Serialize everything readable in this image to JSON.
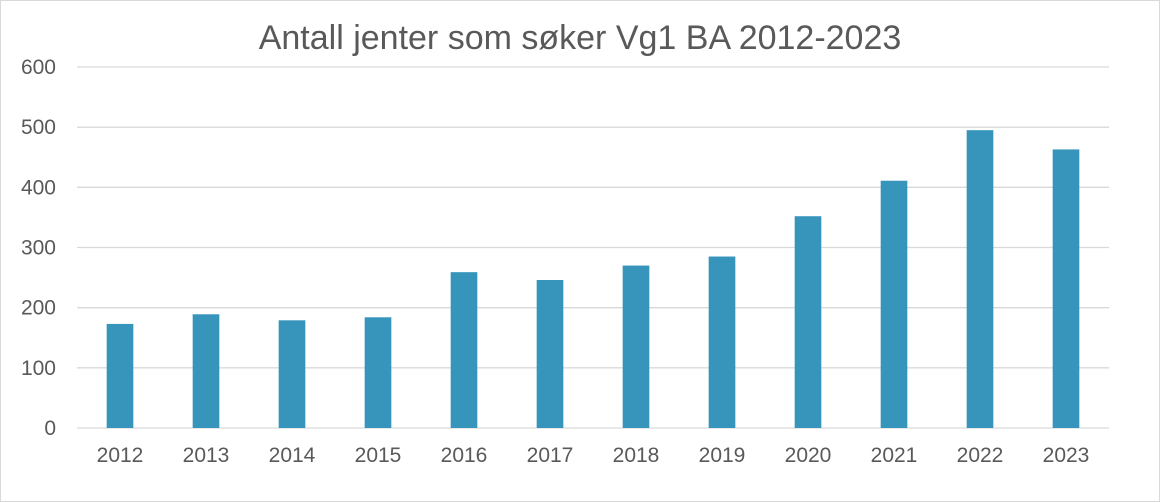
{
  "chart_data": {
    "type": "bar",
    "title": "Antall jenter som søker Vg1 BA 2012-2023",
    "xlabel": "",
    "ylabel": "",
    "categories": [
      "2012",
      "2013",
      "2014",
      "2015",
      "2016",
      "2017",
      "2018",
      "2019",
      "2020",
      "2021",
      "2022",
      "2023"
    ],
    "values": [
      173,
      189,
      179,
      184,
      259,
      246,
      270,
      285,
      352,
      411,
      495,
      463
    ],
    "ylim": [
      0,
      600
    ],
    "yticks": [
      "0",
      "100",
      "200",
      "300",
      "400",
      "500",
      "600"
    ],
    "grid": true,
    "legend": "none",
    "bar_color": "#3795BC",
    "grid_color": "#D9D9D9",
    "text_color": "#595959"
  }
}
